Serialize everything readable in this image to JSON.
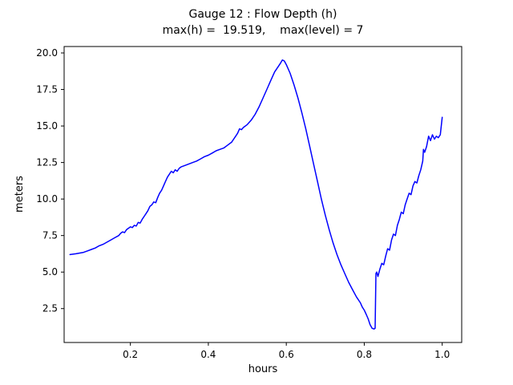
{
  "chart_data": {
    "type": "line",
    "title": "Gauge 12 : Flow Depth (h)",
    "subtitle": "max(h) =  19.519,    max(level) = 7",
    "xlabel": "hours",
    "ylabel": "meters",
    "xlim": [
      0.03,
      1.05
    ],
    "ylim": [
      0.18,
      20.44
    ],
    "xticks": [
      0.2,
      0.4,
      0.6,
      0.8,
      1.0
    ],
    "yticks": [
      2.5,
      5.0,
      7.5,
      10.0,
      12.5,
      15.0,
      17.5,
      20.0
    ],
    "line_color": "#0000ff",
    "max_h": 19.519,
    "max_level": 7,
    "series": [
      {
        "name": "h",
        "x": [
          0.045,
          0.06,
          0.07,
          0.08,
          0.09,
          0.1,
          0.11,
          0.12,
          0.13,
          0.14,
          0.15,
          0.16,
          0.17,
          0.175,
          0.18,
          0.185,
          0.19,
          0.195,
          0.2,
          0.205,
          0.21,
          0.215,
          0.22,
          0.225,
          0.23,
          0.235,
          0.24,
          0.245,
          0.25,
          0.255,
          0.26,
          0.265,
          0.27,
          0.275,
          0.28,
          0.285,
          0.29,
          0.295,
          0.3,
          0.305,
          0.31,
          0.315,
          0.32,
          0.325,
          0.33,
          0.34,
          0.35,
          0.36,
          0.37,
          0.38,
          0.39,
          0.4,
          0.41,
          0.42,
          0.43,
          0.44,
          0.45,
          0.46,
          0.465,
          0.47,
          0.475,
          0.48,
          0.485,
          0.49,
          0.5,
          0.51,
          0.52,
          0.53,
          0.54,
          0.55,
          0.56,
          0.57,
          0.58,
          0.585,
          0.59,
          0.595,
          0.6,
          0.61,
          0.62,
          0.63,
          0.64,
          0.65,
          0.66,
          0.67,
          0.68,
          0.69,
          0.7,
          0.71,
          0.72,
          0.73,
          0.74,
          0.75,
          0.76,
          0.77,
          0.78,
          0.79,
          0.795,
          0.8,
          0.805,
          0.81,
          0.815,
          0.82,
          0.825,
          0.828,
          0.83,
          0.832,
          0.835,
          0.84,
          0.845,
          0.85,
          0.855,
          0.86,
          0.865,
          0.87,
          0.875,
          0.88,
          0.885,
          0.89,
          0.895,
          0.9,
          0.905,
          0.91,
          0.915,
          0.92,
          0.925,
          0.93,
          0.935,
          0.94,
          0.945,
          0.95,
          0.952,
          0.955,
          0.96,
          0.965,
          0.97,
          0.975,
          0.98,
          0.985,
          0.99,
          0.995,
          1.0
        ],
        "y": [
          6.2,
          6.25,
          6.3,
          6.35,
          6.45,
          6.55,
          6.65,
          6.8,
          6.9,
          7.05,
          7.2,
          7.35,
          7.5,
          7.65,
          7.75,
          7.7,
          7.9,
          8.0,
          8.1,
          8.05,
          8.2,
          8.15,
          8.4,
          8.35,
          8.6,
          8.8,
          9.0,
          9.2,
          9.5,
          9.6,
          9.8,
          9.75,
          10.1,
          10.4,
          10.6,
          10.9,
          11.2,
          11.5,
          11.7,
          11.9,
          11.8,
          12.0,
          11.9,
          12.1,
          12.2,
          12.3,
          12.4,
          12.5,
          12.6,
          12.75,
          12.9,
          13.0,
          13.15,
          13.3,
          13.4,
          13.5,
          13.7,
          13.9,
          14.1,
          14.3,
          14.5,
          14.8,
          14.75,
          14.9,
          15.1,
          15.4,
          15.8,
          16.3,
          16.9,
          17.5,
          18.1,
          18.7,
          19.1,
          19.3,
          19.519,
          19.45,
          19.2,
          18.6,
          17.8,
          16.9,
          15.9,
          14.8,
          13.6,
          12.4,
          11.2,
          10.0,
          8.9,
          7.9,
          7.0,
          6.2,
          5.5,
          4.9,
          4.3,
          3.8,
          3.3,
          2.9,
          2.6,
          2.4,
          2.1,
          1.8,
          1.4,
          1.15,
          1.1,
          1.15,
          4.9,
          5.0,
          4.7,
          5.2,
          5.6,
          5.5,
          6.1,
          6.6,
          6.5,
          7.2,
          7.6,
          7.5,
          8.2,
          8.6,
          9.1,
          9.0,
          9.6,
          10.0,
          10.4,
          10.3,
          10.9,
          11.2,
          11.1,
          11.6,
          12.0,
          12.6,
          13.4,
          13.2,
          13.6,
          14.3,
          14.0,
          14.4,
          14.1,
          14.3,
          14.2,
          14.4,
          15.6
        ]
      }
    ]
  }
}
